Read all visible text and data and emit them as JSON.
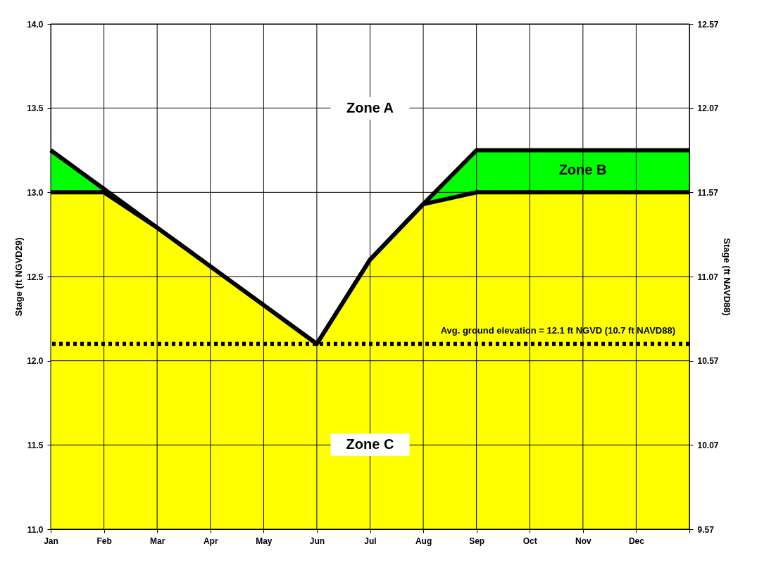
{
  "chart_data": {
    "type": "area",
    "ylabel": "Stage (ft NGVD29)",
    "y2label": "Stage (ft NAVD88)",
    "categories": [
      "Jan",
      "Feb",
      "Mar",
      "Apr",
      "May",
      "Jun",
      "Jul",
      "Aug",
      "Sep",
      "Oct",
      "Nov",
      "Dec",
      null
    ],
    "ylim": [
      11,
      14
    ],
    "yticks": [
      {
        "value": 11,
        "label": "11.0"
      },
      {
        "value": 11.5,
        "label": "11.5"
      },
      {
        "value": 12,
        "label": "12.0"
      },
      {
        "value": 12.5,
        "label": "12.5"
      },
      {
        "value": 13,
        "label": "13.0"
      },
      {
        "value": 13.5,
        "label": "13.5"
      },
      {
        "value": 14,
        "label": "14.0"
      }
    ],
    "y2lim": [
      9.57,
      12.57
    ],
    "y2ticks": [
      {
        "value": 9.57,
        "label": "9.57"
      },
      {
        "value": 10.07,
        "label": "10.07"
      },
      {
        "value": 10.57,
        "label": "10.57"
      },
      {
        "value": 11.07,
        "label": "11.07"
      },
      {
        "value": 11.57,
        "label": "11.57"
      },
      {
        "value": 12.07,
        "label": "12.07"
      },
      {
        "value": 12.57,
        "label": "12.57"
      }
    ],
    "grid": true,
    "series": [
      {
        "color": "#00ff00",
        "values": [
          13.25,
          13.02,
          12.79,
          12.56,
          12.33,
          12.1,
          12.6,
          12.93,
          13.25,
          13.25,
          13.25,
          13.25,
          13.25
        ]
      },
      {
        "color": "#ffff00",
        "values": [
          13,
          13,
          12.79,
          12.56,
          12.33,
          12.1,
          12.6,
          12.93,
          13,
          13,
          13,
          13,
          13
        ]
      }
    ],
    "ref_lines": [
      {
        "axis": "y",
        "value": 12.1,
        "label": "Avg. ground elevation  = 12.1 ft NGVD  (10.7 ft NAVD88)",
        "color": "#000000",
        "line_style": "dotted"
      }
    ],
    "annotations": [
      "Zone A",
      "Zone B",
      "Zone C"
    ]
  }
}
